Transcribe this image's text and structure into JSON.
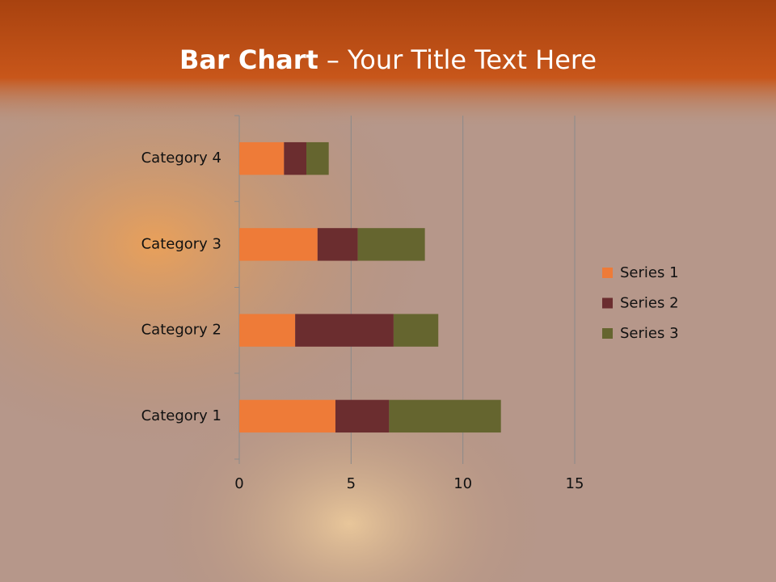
{
  "chart_data": {
    "type": "stacked-barh",
    "title_parts": [
      "Bar Chart",
      "– Your Title Text Here"
    ],
    "categories": [
      "Category 1",
      "Category 2",
      "Category 3",
      "Category 4"
    ],
    "series": [
      {
        "name": "Series 1",
        "color": "#ee7b38",
        "values": [
          4.3,
          2.5,
          3.5,
          2
        ]
      },
      {
        "name": "Series 2",
        "color": "#6b2d2f",
        "values": [
          2.4,
          4.4,
          1.8,
          1
        ]
      },
      {
        "name": "Series 3",
        "color": "#65652f",
        "values": [
          5,
          2,
          3,
          1
        ]
      }
    ],
    "xlim": [
      0,
      15
    ],
    "xticks": [
      0,
      5,
      10,
      15
    ],
    "grid": true,
    "legend": "right"
  }
}
